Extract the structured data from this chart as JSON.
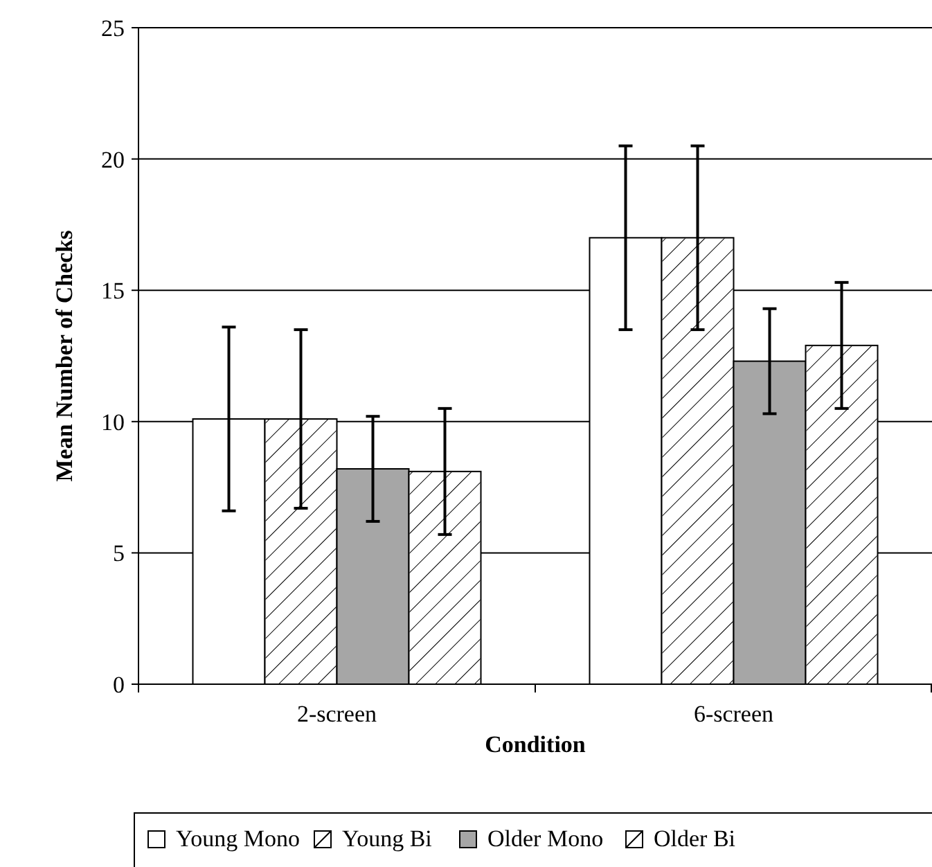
{
  "chart_data": {
    "type": "bar",
    "xlabel": "Condition",
    "ylabel": "Mean Number of Checks",
    "categories": [
      "2-screen",
      "6-screen"
    ],
    "ylim": [
      0,
      25
    ],
    "yticks": [
      0,
      5,
      10,
      15,
      20,
      25
    ],
    "grid": "y",
    "legend": "bottom",
    "series": [
      {
        "name": "Young Mono",
        "color": "#ffffff",
        "values": [
          10.1,
          17.0
        ],
        "errors": [
          3.5,
          3.5
        ]
      },
      {
        "name": "Young Bi",
        "color": "#ffffff",
        "values": [
          10.1,
          17.0
        ],
        "errors": [
          3.4,
          3.5
        ]
      },
      {
        "name": "Older Mono",
        "color": "#a6a6a6",
        "values": [
          8.2,
          12.3
        ],
        "errors": [
          2.0,
          2.0
        ]
      },
      {
        "name": "Older Bi",
        "color": "#ffffff",
        "values": [
          8.1,
          12.9
        ],
        "errors": [
          2.4,
          2.4
        ]
      }
    ]
  }
}
